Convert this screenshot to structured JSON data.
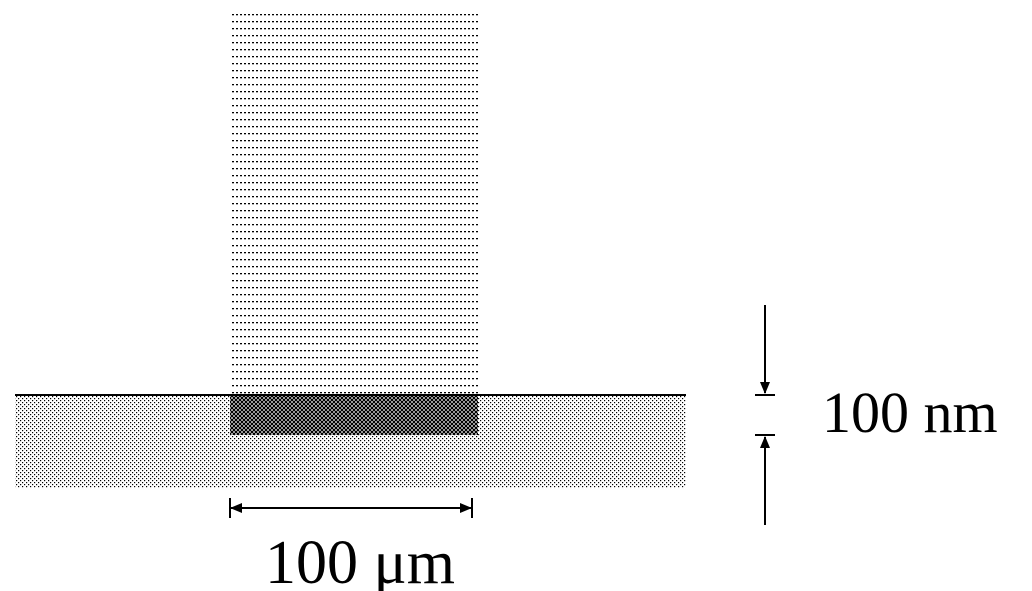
{
  "labels": {
    "thickness": "100 nm",
    "width": "100 μm"
  }
}
